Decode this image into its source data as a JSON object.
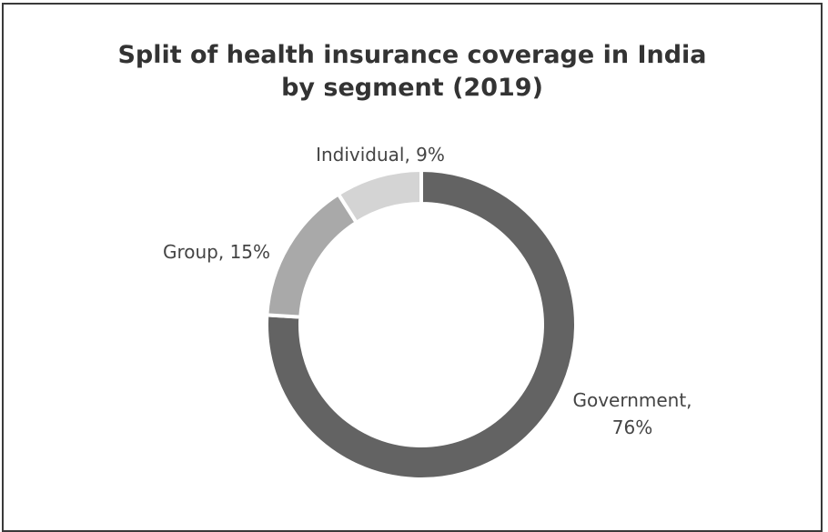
{
  "chart_data": {
    "type": "pie",
    "title_lines": [
      "Split of health insurance coverage in India",
      "by segment (2019)"
    ],
    "slices": [
      {
        "label_lines": [
          "Government,",
          "76%"
        ],
        "name": "Government",
        "value": 76,
        "color": "#636363"
      },
      {
        "label_lines": [
          "Group, 15%"
        ],
        "name": "Group",
        "value": 15,
        "color": "#a9a9a9"
      },
      {
        "label_lines": [
          "Individual, 9%"
        ],
        "name": "Individual",
        "value": 9,
        "color": "#d4d4d4"
      }
    ],
    "donut": true,
    "legend": "none"
  }
}
